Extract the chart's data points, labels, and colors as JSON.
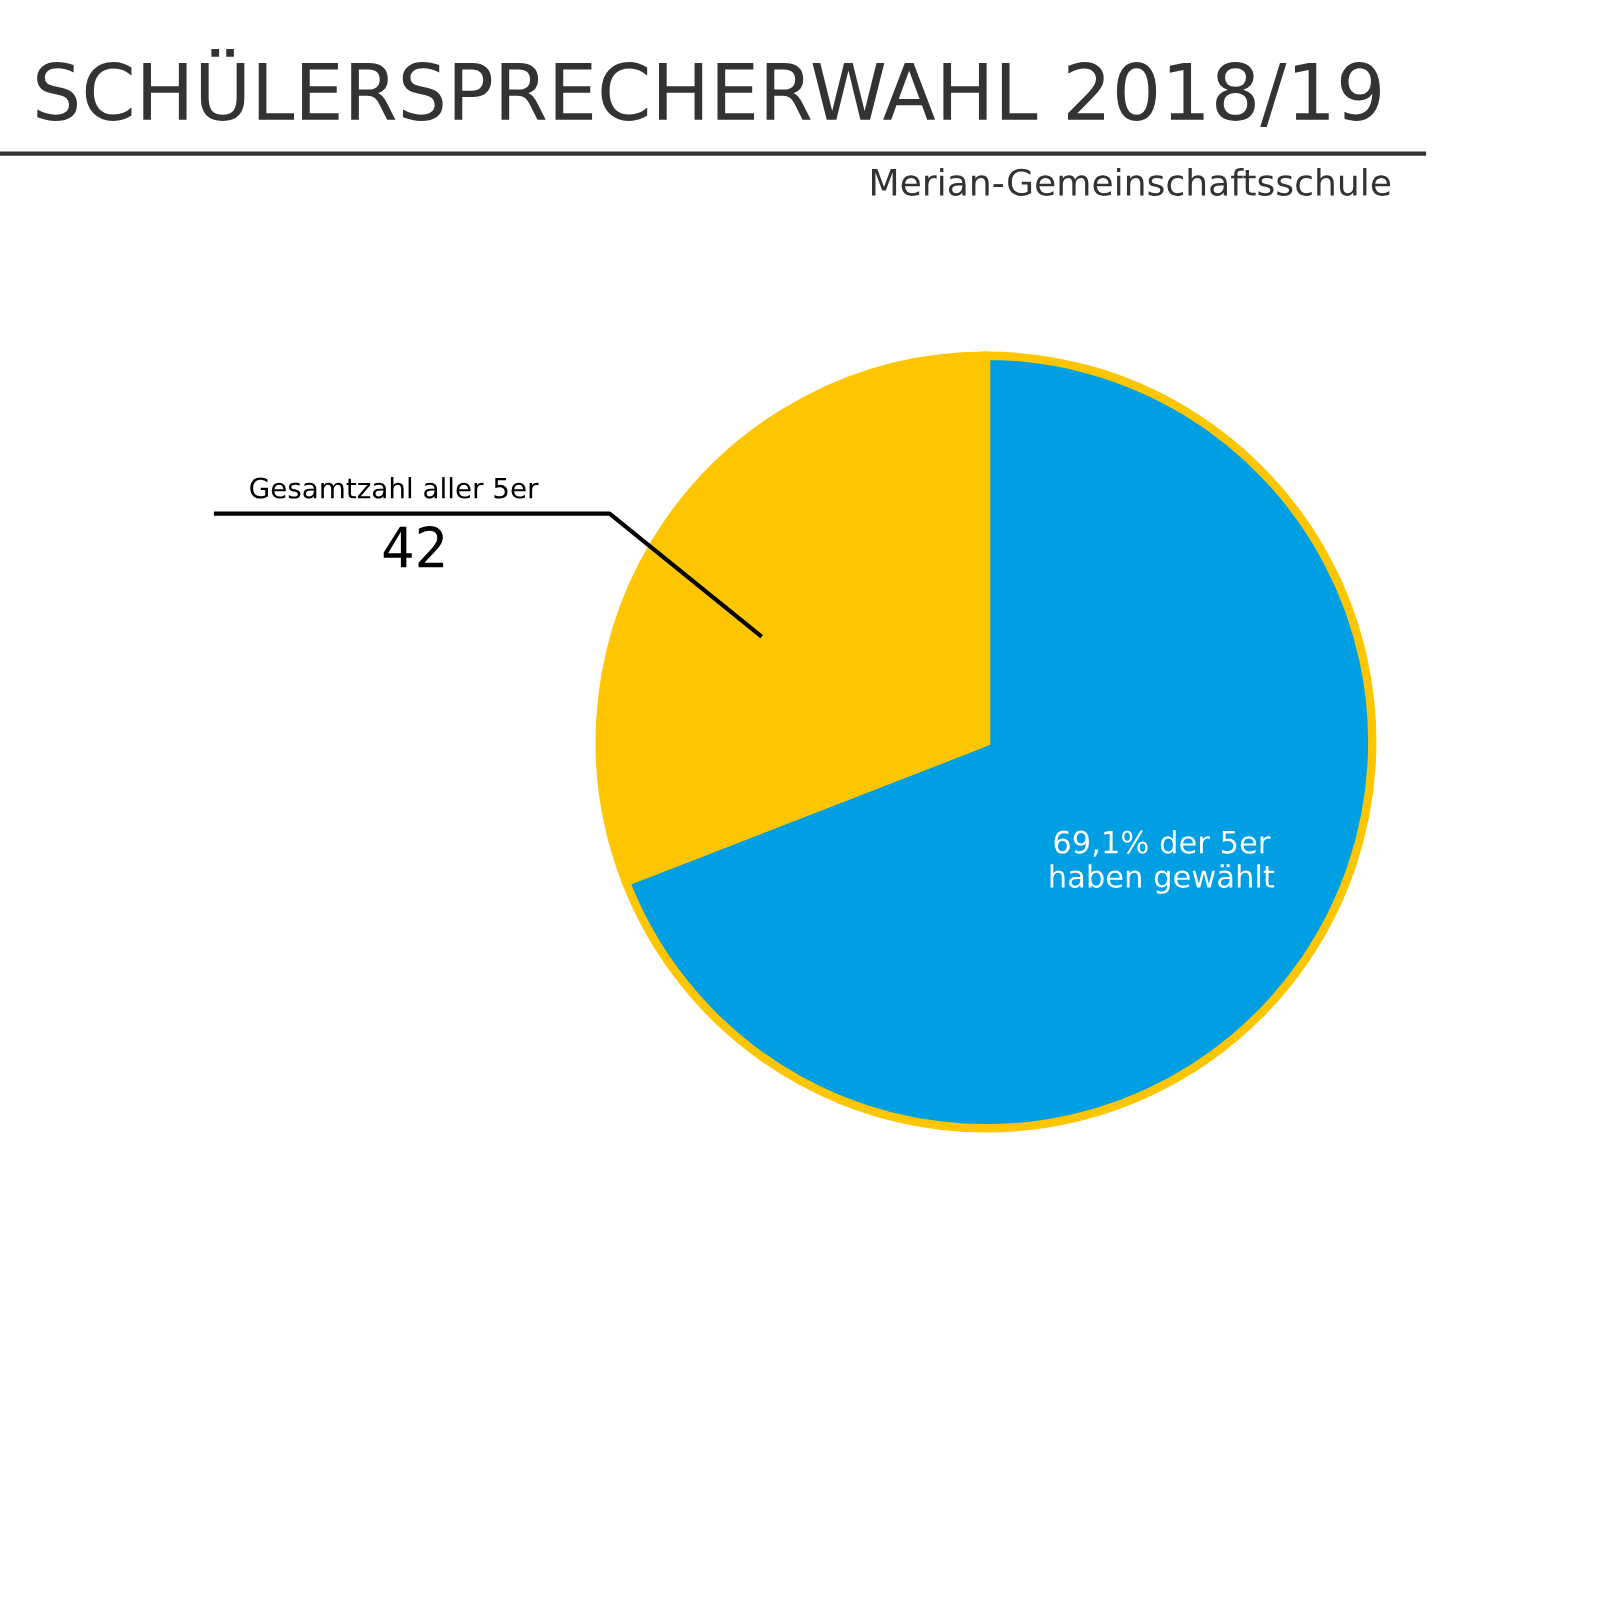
{
  "chart_data": {
    "type": "pie",
    "title": "SCHÜLERSPRECHERWAHL 2018/19",
    "subtitle": "Merian-Gemeinschaftsschule",
    "categories": [
      "69,1% der 5er\nhaben gewählt",
      null
    ],
    "values": [
      69.1,
      30.9
    ],
    "colors": [
      "#009fe3",
      "#fec600"
    ],
    "annotations": [
      "Gesamtzahl aller 5er",
      "42"
    ]
  }
}
